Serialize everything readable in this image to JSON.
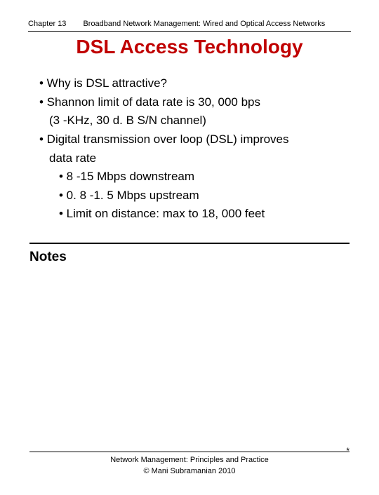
{
  "header": {
    "chapter": "Chapter 13",
    "subtitle": "Broadband Network Management: Wired and Optical Access Networks"
  },
  "title": "DSL Access Technology",
  "bullets": [
    {
      "level": 1,
      "text": "• Why is DSL attractive?"
    },
    {
      "level": 1,
      "text": "• Shannon limit of data rate is 30, 000 bps"
    },
    {
      "level": 1,
      "cont": true,
      "text": "(3 -KHz, 30 d. B S/N channel)"
    },
    {
      "level": 1,
      "text": "• Digital transmission over loop (DSL) improves"
    },
    {
      "level": 1,
      "cont": true,
      "text": "data rate"
    },
    {
      "level": 2,
      "text": "• 8 -15 Mbps downstream"
    },
    {
      "level": 2,
      "text": "• 0. 8 -1. 5 Mbps upstream"
    },
    {
      "level": 2,
      "text": "• Limit on distance: max to 18, 000 feet"
    }
  ],
  "notes_label": "Notes",
  "footer": {
    "line1": "Network Management: Principles and Practice",
    "line2": "© Mani Subramanian 2010"
  },
  "asterisk": "*",
  "colors": {
    "title_color": "#c00000",
    "text_color": "#000000",
    "background": "#ffffff"
  },
  "fonts": {
    "header_size": 11,
    "title_size": 28,
    "body_size": 17,
    "notes_size": 19,
    "footer_size": 11
  }
}
